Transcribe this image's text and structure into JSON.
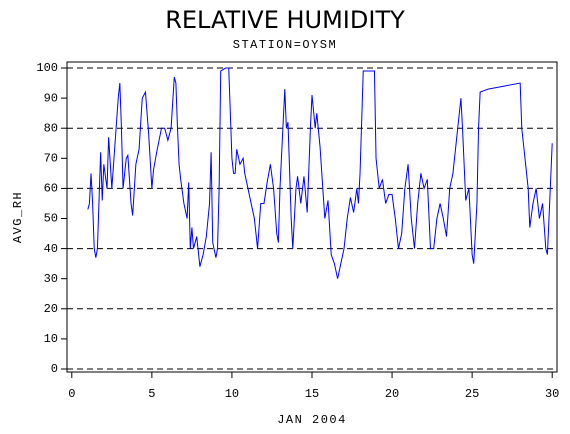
{
  "chart_data": {
    "type": "line",
    "title": "RELATIVE HUMIDITY",
    "subtitle": "STATION=OYSM",
    "ylabel": "AVG_RH",
    "xlabel": "JAN 2004",
    "color": "#0000ff",
    "xlim": [
      -0.3,
      30.3
    ],
    "xticks": [
      0,
      5,
      10,
      15,
      20,
      25,
      30
    ],
    "ylim": [
      -1,
      102
    ],
    "yticks": [
      0,
      10,
      20,
      30,
      40,
      50,
      60,
      70,
      80,
      90,
      100
    ],
    "ygrid": [
      0,
      20,
      40,
      60,
      80,
      100
    ],
    "x": [
      1.0,
      1.1,
      1.2,
      1.3,
      1.4,
      1.5,
      1.6,
      1.8,
      1.9,
      2.0,
      2.2,
      2.3,
      2.5,
      2.7,
      2.9,
      3.0,
      3.1,
      3.2,
      3.4,
      3.5,
      3.7,
      3.8,
      4.0,
      4.2,
      4.4,
      4.6,
      4.8,
      5.0,
      5.1,
      5.3,
      5.6,
      5.8,
      6.0,
      6.2,
      6.4,
      6.5,
      6.6,
      6.7,
      6.8,
      7.0,
      7.2,
      7.3,
      7.4,
      7.5,
      7.6,
      7.8,
      8.0,
      8.2,
      8.4,
      8.6,
      8.7,
      8.8,
      9.0,
      9.1,
      9.2,
      9.3,
      9.6,
      9.8,
      10.0,
      10.1,
      10.2,
      10.3,
      10.5,
      10.7,
      10.8,
      11.0,
      11.2,
      11.4,
      11.6,
      11.8,
      12.0,
      12.2,
      12.4,
      12.6,
      12.8,
      12.9,
      13.0,
      13.3,
      13.4,
      13.5,
      13.7,
      13.8,
      14.0,
      14.1,
      14.3,
      14.5,
      14.7,
      14.9,
      15.0,
      15.2,
      15.3,
      15.5,
      15.8,
      16.0,
      16.2,
      16.4,
      16.6,
      16.8,
      17.0,
      17.2,
      17.4,
      17.6,
      17.8,
      17.9,
      18.0,
      18.2,
      18.5,
      18.9,
      19.0,
      19.2,
      19.4,
      19.6,
      19.8,
      20.0,
      20.2,
      20.4,
      20.6,
      20.8,
      21.0,
      21.2,
      21.4,
      21.6,
      21.8,
      22.0,
      22.2,
      22.4,
      22.6,
      22.8,
      23.0,
      23.2,
      23.4,
      23.6,
      23.8,
      24.0,
      24.2,
      24.3,
      24.4,
      24.6,
      24.8,
      25.0,
      25.1,
      25.3,
      25.4,
      25.5,
      26.0,
      27.0,
      28.0,
      28.1,
      28.3,
      28.5,
      28.6,
      28.8,
      29.0,
      29.2,
      29.4,
      29.6,
      29.7,
      29.8,
      30.0
    ],
    "values": [
      53,
      55,
      65,
      55,
      40,
      37,
      40,
      72,
      56,
      68,
      60,
      77,
      60,
      75,
      90,
      95,
      80,
      60,
      70,
      71,
      55,
      51,
      68,
      73,
      90,
      92,
      78,
      60,
      66,
      72,
      80,
      80,
      76,
      80,
      97,
      95,
      80,
      68,
      63,
      55,
      50,
      62,
      40,
      47,
      40,
      44,
      34,
      38,
      44,
      55,
      72,
      42,
      37,
      40,
      60,
      99,
      100,
      100,
      70,
      65,
      65,
      73,
      68,
      70,
      65,
      60,
      55,
      50,
      40,
      55,
      55,
      62,
      68,
      60,
      45,
      42,
      60,
      93,
      80,
      82,
      50,
      40,
      60,
      64,
      55,
      64,
      52,
      80,
      91,
      80,
      85,
      74,
      50,
      56,
      38,
      35,
      30,
      35,
      40,
      50,
      57,
      52,
      60,
      55,
      65,
      99,
      99,
      99,
      70,
      60,
      63,
      55,
      58,
      58,
      50,
      40,
      45,
      60,
      68,
      50,
      40,
      55,
      65,
      60,
      63,
      40,
      40,
      50,
      55,
      50,
      44,
      60,
      65,
      75,
      85,
      90,
      80,
      56,
      60,
      38,
      35,
      55,
      80,
      92,
      93,
      94,
      95,
      80,
      70,
      60,
      47,
      55,
      60,
      50,
      55,
      40,
      38,
      50,
      75
    ]
  }
}
